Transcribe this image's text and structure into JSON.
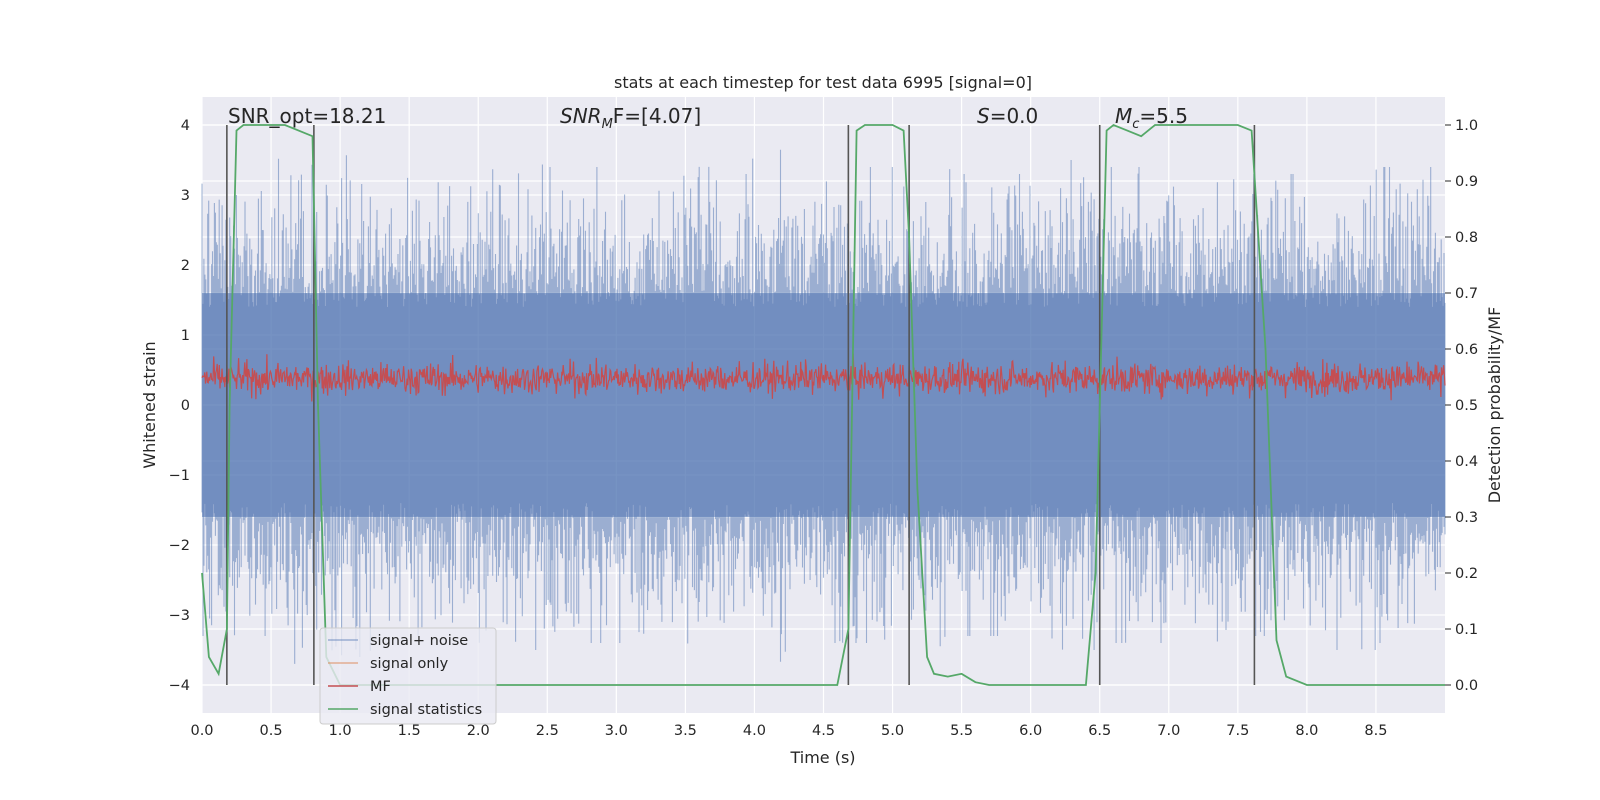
{
  "chart_data": {
    "type": "line",
    "title": "stats at each timestep for test data 6995 [signal=0]",
    "xlabel": "Time (s)",
    "ylabel_left": "Whitened strain",
    "ylabel_right": "Detection probability/MF",
    "xlim": [
      0,
      9.0
    ],
    "ylim_left": [
      -4.4,
      4.4
    ],
    "ylim_right": [
      -0.05,
      1.05
    ],
    "xticks": [
      "0.0",
      "0.5",
      "1.0",
      "1.5",
      "2.0",
      "2.5",
      "3.0",
      "3.5",
      "4.0",
      "4.5",
      "5.0",
      "5.5",
      "6.0",
      "6.5",
      "7.0",
      "7.5",
      "8.0",
      "8.5"
    ],
    "yticks_left": [
      "4",
      "3",
      "2",
      "1",
      "0",
      "−1",
      "−2",
      "−3",
      "−4"
    ],
    "yticks_left_values": [
      4,
      3,
      2,
      1,
      0,
      -1,
      -2,
      -3,
      -4
    ],
    "yticks_right": [
      "1.0",
      "0.9",
      "0.8",
      "0.7",
      "0.6",
      "0.5",
      "0.4",
      "0.3",
      "0.2",
      "0.1",
      "0.0"
    ],
    "yticks_right_values": [
      1.0,
      0.9,
      0.8,
      0.7,
      0.6,
      0.5,
      0.4,
      0.3,
      0.2,
      0.1,
      0.0
    ],
    "grid": true,
    "legend_placement": "lower-left",
    "annotations": [
      {
        "text": "SNR_opt=18.21",
        "x": 0.2
      },
      {
        "text_main": "SNR",
        "text_sub": "M",
        "text_tail": "F=[4.07]",
        "x": 2.6
      },
      {
        "text_main": "S",
        "text_tail": "=0.0",
        "x": 5.6
      },
      {
        "text_main": "M",
        "text_sub": "c",
        "text_tail": "=5.5",
        "x": 6.6
      }
    ],
    "vertical_markers_s": [
      0.18,
      0.81,
      4.68,
      5.12,
      6.5,
      7.62
    ],
    "series": [
      {
        "name": "signal+ noise",
        "color": "#4c72b0",
        "style": "noise band, approx ±1.6 dense with peaks to ±4",
        "peak_envelope": [
          3.3,
          3.7,
          3.6,
          3.3,
          3.5,
          3.4,
          3.4,
          3.6,
          3.7,
          3.4,
          3.6,
          3.3,
          3.5,
          3.4,
          3.6,
          3.3,
          3.5,
          3.4
        ]
      },
      {
        "name": "signal only",
        "color": "#dd8452",
        "values": [
          0
        ]
      },
      {
        "name": "MF",
        "color": "#c44e52",
        "style": "noisy trace around 0.5 detection-probability scale (≈0.2–0.7 strain)"
      },
      {
        "name": "signal statistics",
        "color": "#55a868",
        "x": [
          0.0,
          0.05,
          0.12,
          0.18,
          0.2,
          0.25,
          0.3,
          0.5,
          0.6,
          0.8,
          0.84,
          0.9,
          1.0,
          4.6,
          4.68,
          4.74,
          4.8,
          5.0,
          5.08,
          5.12,
          5.18,
          5.25,
          5.3,
          5.4,
          5.5,
          5.6,
          5.7,
          6.0,
          6.4,
          6.47,
          6.55,
          6.6,
          6.7,
          6.8,
          6.9,
          7.0,
          7.5,
          7.6,
          7.7,
          7.78,
          7.85,
          8.0,
          8.2,
          9.0
        ],
        "y": [
          0.2,
          0.05,
          0.02,
          0.1,
          0.5,
          0.99,
          1.0,
          1.0,
          1.0,
          0.98,
          0.5,
          0.05,
          0.0,
          0.0,
          0.1,
          0.99,
          1.0,
          1.0,
          0.99,
          0.8,
          0.35,
          0.05,
          0.02,
          0.015,
          0.02,
          0.005,
          0.0,
          0.0,
          0.0,
          0.2,
          0.99,
          1.0,
          0.99,
          0.98,
          1.0,
          1.0,
          1.0,
          0.99,
          0.6,
          0.08,
          0.015,
          0.0,
          0.0,
          0.0
        ]
      }
    ]
  }
}
